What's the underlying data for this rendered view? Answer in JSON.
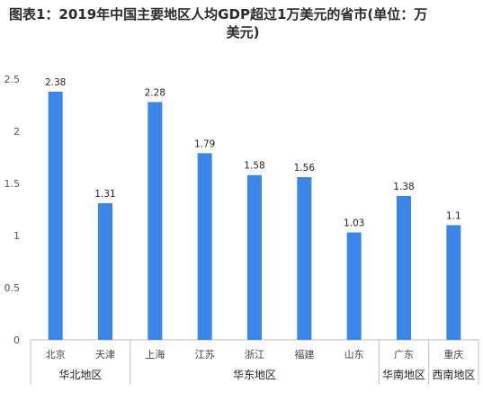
{
  "title_line1": "图表1：2019年中国主要地区人均GDP超过1万美元的省市(单位：万",
  "title_line2": "美元)",
  "chart_data": {
    "type": "bar",
    "categories": [
      "北京",
      "天津",
      "上海",
      "江苏",
      "浙江",
      "福建",
      "山东",
      "广东",
      "重庆"
    ],
    "values": [
      2.38,
      1.31,
      2.28,
      1.79,
      1.58,
      1.56,
      1.03,
      1.38,
      1.1
    ],
    "value_labels": [
      "2.38",
      "1.31",
      "2.28",
      "1.79",
      "1.58",
      "1.56",
      "1.03",
      "1.38",
      "1.1"
    ],
    "ylim": [
      0,
      2.5
    ],
    "yticks": [
      "0",
      "0.5",
      "1",
      "1.5",
      "2",
      "2.5"
    ],
    "ytick_values": [
      0,
      0.5,
      1,
      1.5,
      2,
      2.5
    ],
    "grid": false,
    "bar_color": "#3b86e6",
    "groups": [
      {
        "label": "华北地区",
        "start": 0,
        "end": 1
      },
      {
        "label": "华东地区",
        "start": 2,
        "end": 6
      },
      {
        "label": "华南地区",
        "start": 7,
        "end": 7
      },
      {
        "label": "西南地区",
        "start": 8,
        "end": 8
      }
    ]
  }
}
